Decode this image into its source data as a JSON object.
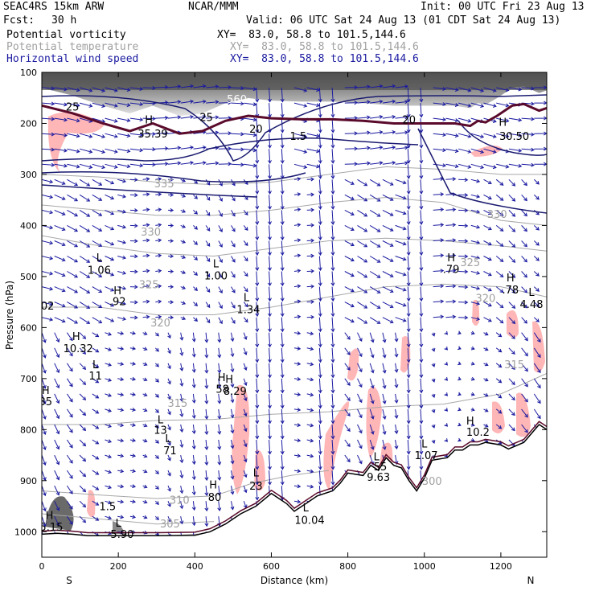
{
  "header": {
    "model": "SEAC4RS 15km ARW",
    "center": "NCAR/MMM",
    "init": "Init: 00 UTC Fri 23 Aug 13",
    "fcst_label": "Fcst:",
    "fcst_value": "30 h",
    "valid": "Valid: 06 UTC Sat 24 Aug 13 (01 CDT Sat 24 Aug 13)"
  },
  "fields": [
    {
      "name": "Potential vorticity",
      "xy": "XY=  83.0, 58.8 to 101.5,144.6",
      "color": "#000000"
    },
    {
      "name": "Potential temperature",
      "xy": "XY=  83.0, 58.8 to 101.5,144.6",
      "color": "#a0a0a0"
    },
    {
      "name": "Horizontal wind speed",
      "xy": "XY=  83.0, 58.8 to 101.5,144.6",
      "color": "#1a1aa0"
    }
  ],
  "chart_data": {
    "type": "cross-section",
    "xlabel": "Distance (km)",
    "ylabel": "Pressure (hPa)",
    "xlim": [
      0,
      1320
    ],
    "ylim": [
      1050,
      100
    ],
    "x_ticks": [
      0,
      200,
      400,
      600,
      800,
      1000,
      1200
    ],
    "y_ticks": [
      100,
      200,
      300,
      400,
      500,
      600,
      700,
      800,
      900,
      1000
    ],
    "end_labels": {
      "left": "S",
      "right": "N"
    },
    "terrain": [
      [
        0,
        1005
      ],
      [
        40,
        1003
      ],
      [
        80,
        1005
      ],
      [
        120,
        1008
      ],
      [
        150,
        1008
      ],
      [
        200,
        1008
      ],
      [
        300,
        1008
      ],
      [
        400,
        1007
      ],
      [
        440,
        1000
      ],
      [
        480,
        985
      ],
      [
        520,
        965
      ],
      [
        560,
        950
      ],
      [
        600,
        925
      ],
      [
        640,
        945
      ],
      [
        660,
        960
      ],
      [
        690,
        945
      ],
      [
        720,
        930
      ],
      [
        760,
        920
      ],
      [
        780,
        905
      ],
      [
        800,
        885
      ],
      [
        840,
        890
      ],
      [
        860,
        870
      ],
      [
        880,
        880
      ],
      [
        900,
        855
      ],
      [
        920,
        870
      ],
      [
        940,
        875
      ],
      [
        960,
        900
      ],
      [
        980,
        920
      ],
      [
        1000,
        895
      ],
      [
        1020,
        860
      ],
      [
        1060,
        855
      ],
      [
        1080,
        840
      ],
      [
        1100,
        840
      ],
      [
        1120,
        830
      ],
      [
        1140,
        830
      ],
      [
        1160,
        825
      ],
      [
        1200,
        830
      ],
      [
        1220,
        838
      ],
      [
        1260,
        825
      ],
      [
        1300,
        790
      ],
      [
        1320,
        800
      ]
    ],
    "tropopause": [
      [
        0,
        165
      ],
      [
        80,
        180
      ],
      [
        160,
        200
      ],
      [
        230,
        215
      ],
      [
        290,
        200
      ],
      [
        360,
        220
      ],
      [
        420,
        215
      ],
      [
        480,
        195
      ],
      [
        540,
        185
      ],
      [
        600,
        190
      ],
      [
        680,
        192
      ],
      [
        760,
        192
      ],
      [
        840,
        195
      ],
      [
        920,
        200
      ],
      [
        990,
        200
      ],
      [
        1040,
        200
      ],
      [
        1080,
        200
      ],
      [
        1120,
        205
      ],
      [
        1140,
        195
      ],
      [
        1160,
        198
      ],
      [
        1190,
        185
      ],
      [
        1230,
        165
      ],
      [
        1260,
        162
      ],
      [
        1300,
        175
      ],
      [
        1320,
        170
      ]
    ],
    "theta_contours": [
      {
        "label": "300",
        "points": [
          [
            20,
            1020
          ],
          [
            100,
            1018
          ],
          [
            200,
            1015
          ],
          [
            300,
            1010
          ],
          [
            400,
            1005
          ],
          [
            500,
            1000
          ]
        ]
      },
      {
        "label": "305",
        "points": [
          [
            0,
            965
          ],
          [
            150,
            975
          ],
          [
            300,
            985
          ],
          [
            450,
            980
          ]
        ]
      },
      {
        "label": "310",
        "points": [
          [
            0,
            920
          ],
          [
            150,
            928
          ],
          [
            300,
            935
          ],
          [
            450,
            930
          ],
          [
            550,
            905
          ],
          [
            650,
            890
          ],
          [
            750,
            880
          ]
        ]
      },
      {
        "label": "315",
        "points": [
          [
            0,
            790
          ],
          [
            150,
            790
          ],
          [
            300,
            782
          ],
          [
            450,
            780
          ],
          [
            600,
            770
          ],
          [
            750,
            765
          ],
          [
            900,
            755
          ],
          [
            1050,
            750
          ],
          [
            1200,
            730
          ],
          [
            1320,
            690
          ]
        ]
      },
      {
        "label": "320",
        "points": [
          [
            0,
            560
          ],
          [
            150,
            560
          ],
          [
            300,
            575
          ],
          [
            450,
            575
          ],
          [
            600,
            560
          ],
          [
            750,
            540
          ],
          [
            900,
            520
          ],
          [
            1050,
            515
          ],
          [
            1200,
            520
          ],
          [
            1320,
            540
          ]
        ]
      },
      {
        "label": "325",
        "points": [
          [
            0,
            420
          ],
          [
            150,
            440
          ],
          [
            300,
            455
          ],
          [
            450,
            460
          ],
          [
            600,
            445
          ],
          [
            750,
            430
          ],
          [
            900,
            425
          ],
          [
            1050,
            430
          ],
          [
            1200,
            440
          ],
          [
            1320,
            450
          ]
        ]
      },
      {
        "label": "330",
        "points": [
          [
            0,
            360
          ],
          [
            150,
            370
          ],
          [
            300,
            380
          ],
          [
            450,
            380
          ],
          [
            600,
            370
          ],
          [
            750,
            355
          ],
          [
            900,
            345
          ],
          [
            1050,
            355
          ],
          [
            1200,
            390
          ],
          [
            1320,
            400
          ]
        ]
      },
      {
        "label": "335",
        "points": [
          [
            0,
            300
          ],
          [
            150,
            305
          ],
          [
            300,
            315
          ],
          [
            450,
            320
          ],
          [
            600,
            315
          ],
          [
            750,
            300
          ],
          [
            900,
            285
          ],
          [
            1050,
            290
          ],
          [
            1200,
            300
          ],
          [
            1320,
            300
          ]
        ]
      }
    ],
    "annotations": [
      {
        "text": "H",
        "x": 280,
        "p": 200,
        "color": "#000000"
      },
      {
        "text": "35.39",
        "x": 290,
        "p": 228,
        "color": "#000000"
      },
      {
        "text": "L",
        "x": 150,
        "p": 470,
        "color": "#000000"
      },
      {
        "text": "1.06",
        "x": 150,
        "p": 495,
        "color": "#000000"
      },
      {
        "text": "H",
        "x": 198,
        "p": 535,
        "color": "#000000"
      },
      {
        "text": ".92",
        "x": 198,
        "p": 556,
        "color": "#000000"
      },
      {
        "text": "L",
        "x": 455,
        "p": 482,
        "color": "#000000"
      },
      {
        "text": "1.00",
        "x": 455,
        "p": 506,
        "color": "#000000"
      },
      {
        "text": "L",
        "x": 535,
        "p": 548,
        "color": "#000000"
      },
      {
        "text": "1.34",
        "x": 540,
        "p": 572,
        "color": "#000000"
      },
      {
        "text": "H",
        "x": 1070,
        "p": 470,
        "color": "#000000"
      },
      {
        "text": ".79",
        "x": 1070,
        "p": 493,
        "color": "#000000"
      },
      {
        "text": "H",
        "x": 1225,
        "p": 510,
        "color": "#000000"
      },
      {
        "text": ".78",
        "x": 1225,
        "p": 533,
        "color": "#000000"
      },
      {
        "text": "L",
        "x": 1280,
        "p": 538,
        "color": "#000000"
      },
      {
        "text": "4.48",
        "x": 1280,
        "p": 562,
        "color": "#000000"
      },
      {
        "text": "H",
        "x": 90,
        "p": 625,
        "color": "#000000"
      },
      {
        "text": "10.32",
        "x": 95,
        "p": 648,
        "color": "#000000"
      },
      {
        "text": "L",
        "x": 140,
        "p": 680,
        "color": "#000000"
      },
      {
        "text": "11",
        "x": 140,
        "p": 702,
        "color": "#000000"
      },
      {
        "text": "H",
        "x": 470,
        "p": 705,
        "color": "#000000"
      },
      {
        "text": "H",
        "x": 490,
        "p": 708,
        "color": "#000000"
      },
      {
        "text": "58",
        "x": 472,
        "p": 728,
        "color": "#000000"
      },
      {
        "text": "8.29",
        "x": 505,
        "p": 732,
        "color": "#000000"
      },
      {
        "text": "L",
        "x": 310,
        "p": 788,
        "color": "#000000"
      },
      {
        "text": "13",
        "x": 310,
        "p": 808,
        "color": "#000000"
      },
      {
        "text": "L",
        "x": 330,
        "p": 825,
        "color": "#000000"
      },
      {
        "text": "71",
        "x": 335,
        "p": 848,
        "color": "#000000"
      },
      {
        "text": "H",
        "x": 1120,
        "p": 790,
        "color": "#000000"
      },
      {
        "text": "10.2",
        "x": 1140,
        "p": 812,
        "color": "#000000"
      },
      {
        "text": "L",
        "x": 1000,
        "p": 835,
        "color": "#000000"
      },
      {
        "text": "1.07",
        "x": 1005,
        "p": 858,
        "color": "#000000"
      },
      {
        "text": "L",
        "x": 875,
        "p": 860,
        "color": "#000000"
      },
      {
        "text": "55",
        "x": 885,
        "p": 880,
        "color": "#000000"
      },
      {
        "text": "9.63",
        "x": 880,
        "p": 900,
        "color": "#000000"
      },
      {
        "text": "L",
        "x": 560,
        "p": 892,
        "color": "#000000"
      },
      {
        "text": "23",
        "x": 560,
        "p": 918,
        "color": "#000000"
      },
      {
        "text": "H",
        "x": 448,
        "p": 915,
        "color": "#000000"
      },
      {
        "text": "80",
        "x": 452,
        "p": 940,
        "color": "#000000"
      },
      {
        "text": "1.5",
        "x": 172,
        "p": 958,
        "color": "#000000"
      },
      {
        "text": "H",
        "x": 20,
        "p": 975,
        "color": "#000000"
      },
      {
        "text": "5.15",
        "x": 25,
        "p": 998,
        "color": "#000000"
      },
      {
        "text": "L",
        "x": 200,
        "p": 990,
        "color": "#000000"
      },
      {
        "text": "5.90",
        "x": 210,
        "p": 1012,
        "color": "#000000"
      },
      {
        "text": "L",
        "x": 690,
        "p": 960,
        "color": "#000000"
      },
      {
        "text": "10.04",
        "x": 700,
        "p": 985,
        "color": "#000000"
      },
      {
        "text": "H",
        "x": 10,
        "p": 730,
        "color": "#000000"
      },
      {
        "text": "35",
        "x": 10,
        "p": 752,
        "color": "#000000"
      },
      {
        "text": "02",
        "x": 15,
        "p": 565,
        "color": "#000000"
      },
      {
        "text": "25",
        "x": 80,
        "p": 175,
        "color": "#000000"
      },
      {
        "text": "25",
        "x": 430,
        "p": 195,
        "color": "#000000"
      },
      {
        "text": "20",
        "x": 560,
        "p": 218,
        "color": "#000000"
      },
      {
        "text": "20",
        "x": 960,
        "p": 200,
        "color": "#000000"
      },
      {
        "text": "1.5",
        "x": 670,
        "p": 232,
        "color": "#000000"
      },
      {
        "text": "H",
        "x": 1205,
        "p": 205,
        "color": "#000000"
      },
      {
        "text": "30.50",
        "x": 1235,
        "p": 232,
        "color": "#000000"
      },
      {
        "text": "560",
        "x": 510,
        "p": 160,
        "color": "#ffffff"
      },
      {
        "text": "300",
        "x": 1020,
        "p": 908,
        "color": "#a0a0a0"
      },
      {
        "text": "310",
        "x": 360,
        "p": 945,
        "color": "#a0a0a0"
      },
      {
        "text": "305",
        "x": 335,
        "p": 992,
        "color": "#a0a0a0"
      },
      {
        "text": "315",
        "x": 355,
        "p": 755,
        "color": "#a0a0a0"
      },
      {
        "text": "315",
        "x": 1235,
        "p": 680,
        "color": "#a0a0a0"
      },
      {
        "text": "320",
        "x": 310,
        "p": 598,
        "color": "#a0a0a0"
      },
      {
        "text": "320",
        "x": 1160,
        "p": 550,
        "color": "#a0a0a0"
      },
      {
        "text": "325",
        "x": 280,
        "p": 523,
        "color": "#a0a0a0"
      },
      {
        "text": "325",
        "x": 1120,
        "p": 480,
        "color": "#a0a0a0"
      },
      {
        "text": "330",
        "x": 285,
        "p": 420,
        "color": "#a0a0a0"
      },
      {
        "text": "330",
        "x": 1190,
        "p": 385,
        "color": "#a0a0a0"
      },
      {
        "text": "335",
        "x": 320,
        "p": 325,
        "color": "#a0a0a0"
      }
    ]
  }
}
